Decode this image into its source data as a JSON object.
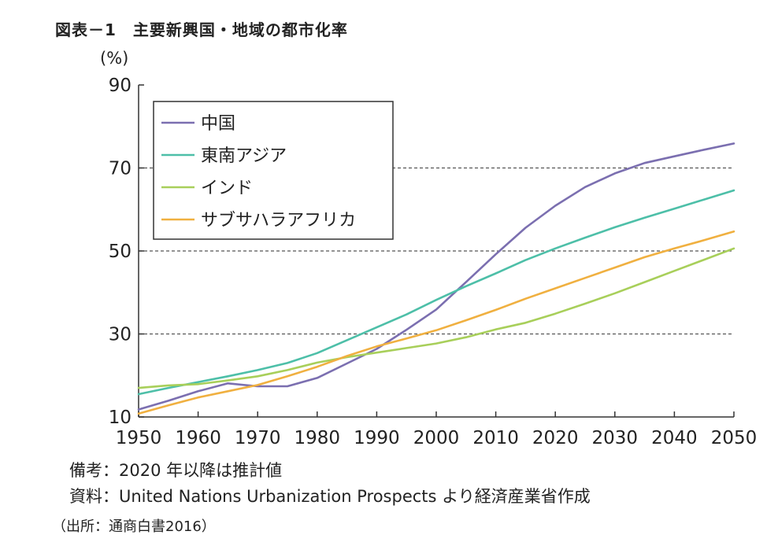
{
  "title": "図表－1　主要新興国・地域の都市化率",
  "notes": {
    "remark": "備考：2020 年以降は推計値",
    "data_source": "資料：United Nations Urbanization Prospects より経済産業省作成"
  },
  "citation": "（出所：通商白書2016）",
  "chart_data": {
    "type": "line",
    "ylabel": "(%)",
    "ylim": [
      10,
      90
    ],
    "xlim": [
      1950,
      2050
    ],
    "yticks": [
      10,
      30,
      50,
      70,
      90
    ],
    "xticks": [
      1950,
      1960,
      1970,
      1980,
      1990,
      2000,
      2010,
      2020,
      2030,
      2040,
      2050
    ],
    "gridlines": [
      30,
      50,
      70
    ],
    "legend_position": "top-left",
    "x": [
      1950,
      1955,
      1960,
      1965,
      1970,
      1975,
      1980,
      1985,
      1990,
      1995,
      2000,
      2005,
      2010,
      2015,
      2020,
      2025,
      2030,
      2035,
      2040,
      2045,
      2050
    ],
    "series": [
      {
        "name": "中国",
        "color": "#7b6fb0",
        "values": [
          11.8,
          13.9,
          16.2,
          18.1,
          17.4,
          17.4,
          19.4,
          22.9,
          26.4,
          31.0,
          35.9,
          42.5,
          49.2,
          55.6,
          60.9,
          65.4,
          68.7,
          71.2,
          72.8,
          74.4,
          75.9
        ]
      },
      {
        "name": "東南アジア",
        "color": "#4dbfa8",
        "values": [
          15.5,
          17.0,
          18.4,
          19.8,
          21.3,
          23.0,
          25.4,
          28.5,
          31.6,
          34.7,
          38.2,
          41.5,
          44.6,
          47.8,
          50.6,
          53.2,
          55.7,
          58.0,
          60.2,
          62.4,
          64.6
        ]
      },
      {
        "name": "インド",
        "color": "#a8cf5a",
        "values": [
          17.0,
          17.6,
          17.9,
          18.8,
          19.8,
          21.3,
          23.1,
          24.4,
          25.5,
          26.6,
          27.7,
          29.2,
          31.1,
          32.7,
          34.9,
          37.3,
          39.8,
          42.5,
          45.2,
          47.9,
          50.6
        ]
      },
      {
        "name": "サブサハラアフリカ",
        "color": "#f0b040",
        "values": [
          10.8,
          12.8,
          14.7,
          16.2,
          17.7,
          19.8,
          22.1,
          24.7,
          27.0,
          28.9,
          30.9,
          33.3,
          35.8,
          38.5,
          41.0,
          43.5,
          46.0,
          48.5,
          50.6,
          52.6,
          54.7
        ]
      }
    ]
  }
}
